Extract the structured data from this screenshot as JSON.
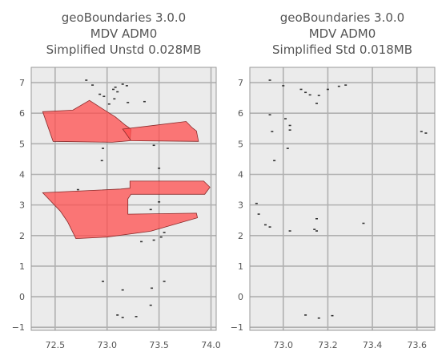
{
  "chart_data": [
    {
      "type": "map",
      "title": [
        "geoBoundaries 3.0.0",
        "MDV ADM0",
        "Simplified Unstd 0.028MB"
      ],
      "xlim": [
        72.27,
        74.05
      ],
      "ylim": [
        -1.1,
        7.5
      ],
      "xticks": [
        72.5,
        73.0,
        73.5,
        74.0
      ],
      "xtick_labels": [
        "72.5",
        "73.0",
        "73.5",
        "74.0"
      ],
      "yticks": [
        -1,
        0,
        1,
        2,
        3,
        4,
        5,
        6,
        7
      ],
      "ytick_labels": [
        "−1",
        "0",
        "1",
        "2",
        "3",
        "4",
        "5",
        "6",
        "7"
      ],
      "grid": true,
      "background": "#ebebeb",
      "grid_color": "#b0b0b0",
      "fill_color": "#ff4d4d",
      "polygons": [
        [
          [
            72.38,
            6.05
          ],
          [
            72.67,
            6.1
          ],
          [
            72.83,
            6.42
          ],
          [
            72.93,
            6.2
          ],
          [
            73.08,
            5.88
          ],
          [
            73.18,
            5.6
          ],
          [
            73.23,
            5.48
          ],
          [
            73.22,
            5.1
          ],
          [
            73.05,
            5.05
          ],
          [
            72.48,
            5.08
          ]
        ],
        [
          [
            73.15,
            5.48
          ],
          [
            73.4,
            5.58
          ],
          [
            73.76,
            5.73
          ],
          [
            73.82,
            5.52
          ],
          [
            73.86,
            5.42
          ],
          [
            73.88,
            5.08
          ],
          [
            73.23,
            5.1
          ]
        ],
        [
          [
            72.38,
            3.4
          ],
          [
            72.55,
            2.8
          ],
          [
            72.62,
            2.45
          ],
          [
            72.7,
            1.9
          ],
          [
            73.0,
            1.95
          ],
          [
            73.42,
            2.14
          ],
          [
            73.87,
            2.58
          ],
          [
            73.86,
            2.73
          ],
          [
            73.2,
            2.7
          ],
          [
            73.2,
            3.2
          ],
          [
            73.23,
            3.35
          ],
          [
            73.94,
            3.35
          ],
          [
            73.99,
            3.58
          ],
          [
            73.93,
            3.78
          ],
          [
            73.22,
            3.78
          ],
          [
            73.22,
            3.55
          ],
          [
            73.13,
            3.52
          ],
          [
            72.38,
            3.4
          ]
        ]
      ],
      "islands": [
        [
          72.8,
          7.08
        ],
        [
          72.86,
          6.92
        ],
        [
          73.15,
          6.95
        ],
        [
          73.19,
          6.9
        ],
        [
          73.08,
          6.85
        ],
        [
          73.06,
          6.78
        ],
        [
          73.1,
          6.7
        ],
        [
          72.93,
          6.62
        ],
        [
          72.97,
          6.55
        ],
        [
          73.07,
          6.47
        ],
        [
          73.2,
          6.35
        ],
        [
          73.02,
          6.3
        ],
        [
          73.36,
          6.38
        ],
        [
          72.96,
          4.85
        ],
        [
          72.95,
          4.45
        ],
        [
          73.5,
          4.2
        ],
        [
          73.45,
          4.95
        ],
        [
          72.72,
          3.5
        ],
        [
          73.5,
          3.1
        ],
        [
          73.42,
          2.85
        ],
        [
          73.55,
          2.1
        ],
        [
          73.52,
          1.95
        ],
        [
          73.45,
          1.85
        ],
        [
          73.33,
          1.8
        ],
        [
          72.96,
          0.5
        ],
        [
          73.15,
          0.22
        ],
        [
          73.43,
          0.28
        ],
        [
          73.55,
          0.5
        ],
        [
          73.1,
          -0.6
        ],
        [
          73.15,
          -0.68
        ],
        [
          73.28,
          -0.65
        ],
        [
          73.42,
          -0.28
        ]
      ]
    },
    {
      "type": "map",
      "title": [
        "geoBoundaries 3.0.0",
        "MDV ADM0",
        "Simplified Std 0.018MB"
      ],
      "xlim": [
        72.85,
        73.68
      ],
      "ylim": [
        -1.1,
        7.5
      ],
      "xticks": [
        73.0,
        73.2,
        73.4,
        73.6
      ],
      "xtick_labels": [
        "73.0",
        "73.2",
        "73.4",
        "73.6"
      ],
      "yticks": [
        -1,
        0,
        1,
        2,
        3,
        4,
        5,
        6,
        7
      ],
      "ytick_labels": [
        "−1",
        "0",
        "1",
        "2",
        "3",
        "4",
        "5",
        "6",
        "7"
      ],
      "grid": true,
      "background": "#ebebeb",
      "grid_color": "#b0b0b0",
      "polygons": [],
      "islands": [
        [
          72.94,
          7.08
        ],
        [
          73.0,
          6.9
        ],
        [
          73.08,
          6.78
        ],
        [
          73.1,
          6.68
        ],
        [
          73.12,
          6.6
        ],
        [
          73.16,
          6.58
        ],
        [
          73.2,
          6.78
        ],
        [
          73.25,
          6.88
        ],
        [
          73.28,
          6.92
        ],
        [
          73.15,
          6.32
        ],
        [
          72.94,
          5.95
        ],
        [
          73.01,
          5.82
        ],
        [
          73.03,
          5.6
        ],
        [
          73.03,
          5.45
        ],
        [
          72.95,
          5.4
        ],
        [
          73.02,
          4.85
        ],
        [
          72.96,
          4.45
        ],
        [
          73.62,
          5.4
        ],
        [
          73.64,
          5.35
        ],
        [
          72.88,
          3.05
        ],
        [
          72.89,
          2.7
        ],
        [
          72.92,
          2.35
        ],
        [
          72.94,
          2.28
        ],
        [
          73.03,
          2.15
        ],
        [
          73.15,
          2.55
        ],
        [
          73.14,
          2.2
        ],
        [
          73.15,
          2.15
        ],
        [
          73.36,
          2.4
        ],
        [
          73.1,
          -0.6
        ],
        [
          73.16,
          -0.7
        ],
        [
          73.22,
          -0.62
        ]
      ]
    }
  ]
}
